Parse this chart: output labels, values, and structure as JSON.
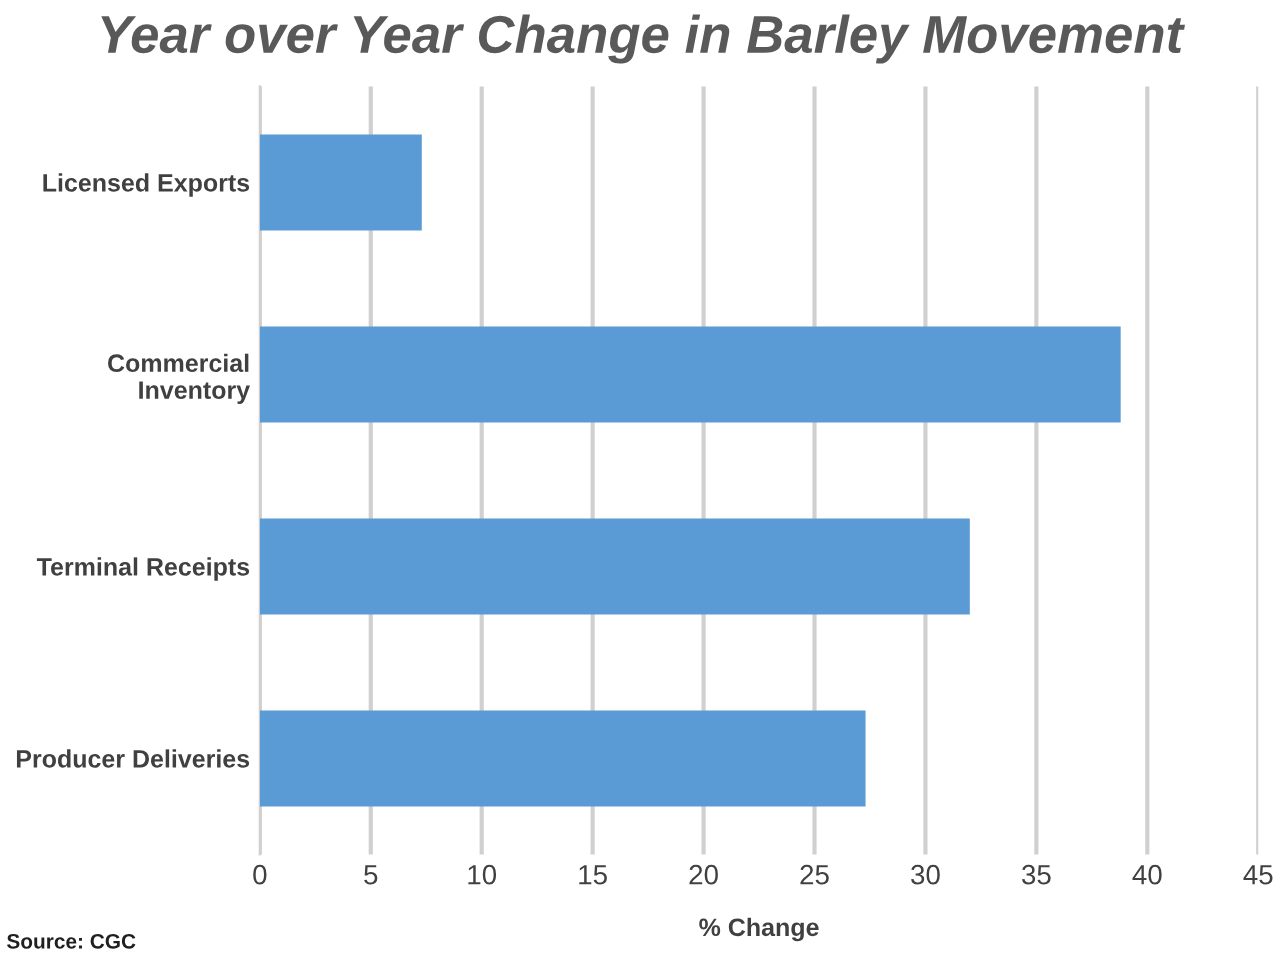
{
  "chart_data": {
    "type": "bar",
    "orientation": "horizontal",
    "title": "Year over Year Change in Barley Movement",
    "xlabel": "% Change",
    "categories": [
      "Licensed Exports",
      "Commercial\nInventory",
      "Terminal Receipts",
      "Producer Deliveries"
    ],
    "values": [
      7.3,
      38.8,
      32.0,
      27.3
    ],
    "color": "#5b9bd5",
    "xlim": [
      0,
      45
    ],
    "xticks": [
      0,
      5,
      10,
      15,
      20,
      25,
      30,
      35,
      40,
      45
    ],
    "grid": "x",
    "legend": false,
    "annotations": [
      "Source: CGC"
    ]
  }
}
